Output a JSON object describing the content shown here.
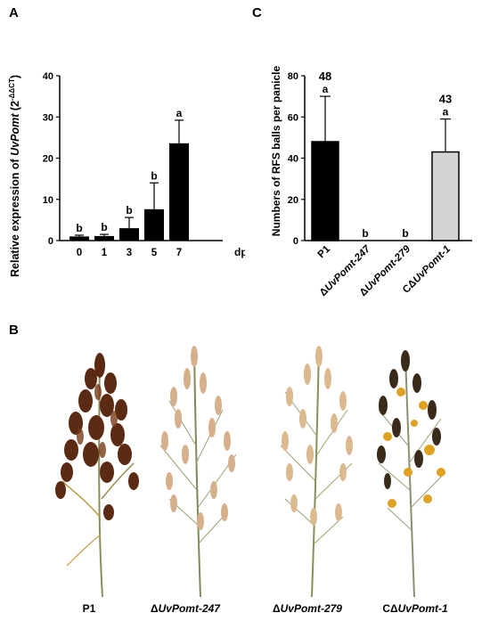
{
  "panels": {
    "a": "A",
    "b": "B",
    "c": "C"
  },
  "colors": {
    "bar_black": "#000000",
    "bar_grey": "#d3d3d3"
  },
  "chart_data": [
    {
      "panel": "A",
      "type": "bar",
      "categories": [
        "0",
        "1",
        "3",
        "5",
        "7"
      ],
      "values": [
        1.0,
        1.1,
        3.0,
        7.6,
        23.6
      ],
      "errors": [
        0.3,
        0.4,
        2.6,
        6.4,
        5.6
      ],
      "letters": [
        "b",
        "b",
        "b",
        "b",
        "a"
      ],
      "xlabel": "dpi",
      "ylabel_prefix": "Relative expression of ",
      "ylabel_gene": "UvPomt",
      "ylabel_formula": "(2",
      "ylabel_exponent": "-ΔΔCT",
      "ylabel_close": ")",
      "ylim": [
        0,
        40
      ],
      "yticks": [
        "0",
        "10",
        "20",
        "30",
        "40"
      ]
    },
    {
      "panel": "C",
      "type": "bar",
      "categories": [
        "P1",
        "ΔUvPomt-247",
        "ΔUvPomt-279",
        "CΔUvPomt-1"
      ],
      "values": [
        48,
        0,
        0,
        43
      ],
      "errors": [
        22,
        0,
        0,
        16
      ],
      "letters": [
        "a",
        "b",
        "b",
        "a"
      ],
      "value_labels": [
        "48",
        "",
        "",
        "43"
      ],
      "bar_colors": [
        "#000000",
        "#000000",
        "#000000",
        "#d3d3d3"
      ],
      "ylabel": "Numbers of RFS balls per panicle",
      "ylim": [
        0,
        80
      ],
      "yticks": [
        "0",
        "20",
        "40",
        "60",
        "80"
      ]
    }
  ],
  "photo_labels": {
    "p1": "P1",
    "m247_prefix": "Δ",
    "m247_name": "UvPomt-247",
    "m279_prefix": "Δ",
    "m279_name": "UvPomt-279",
    "comp_prefix": "CΔ",
    "comp_name": "UvPomt-1"
  }
}
